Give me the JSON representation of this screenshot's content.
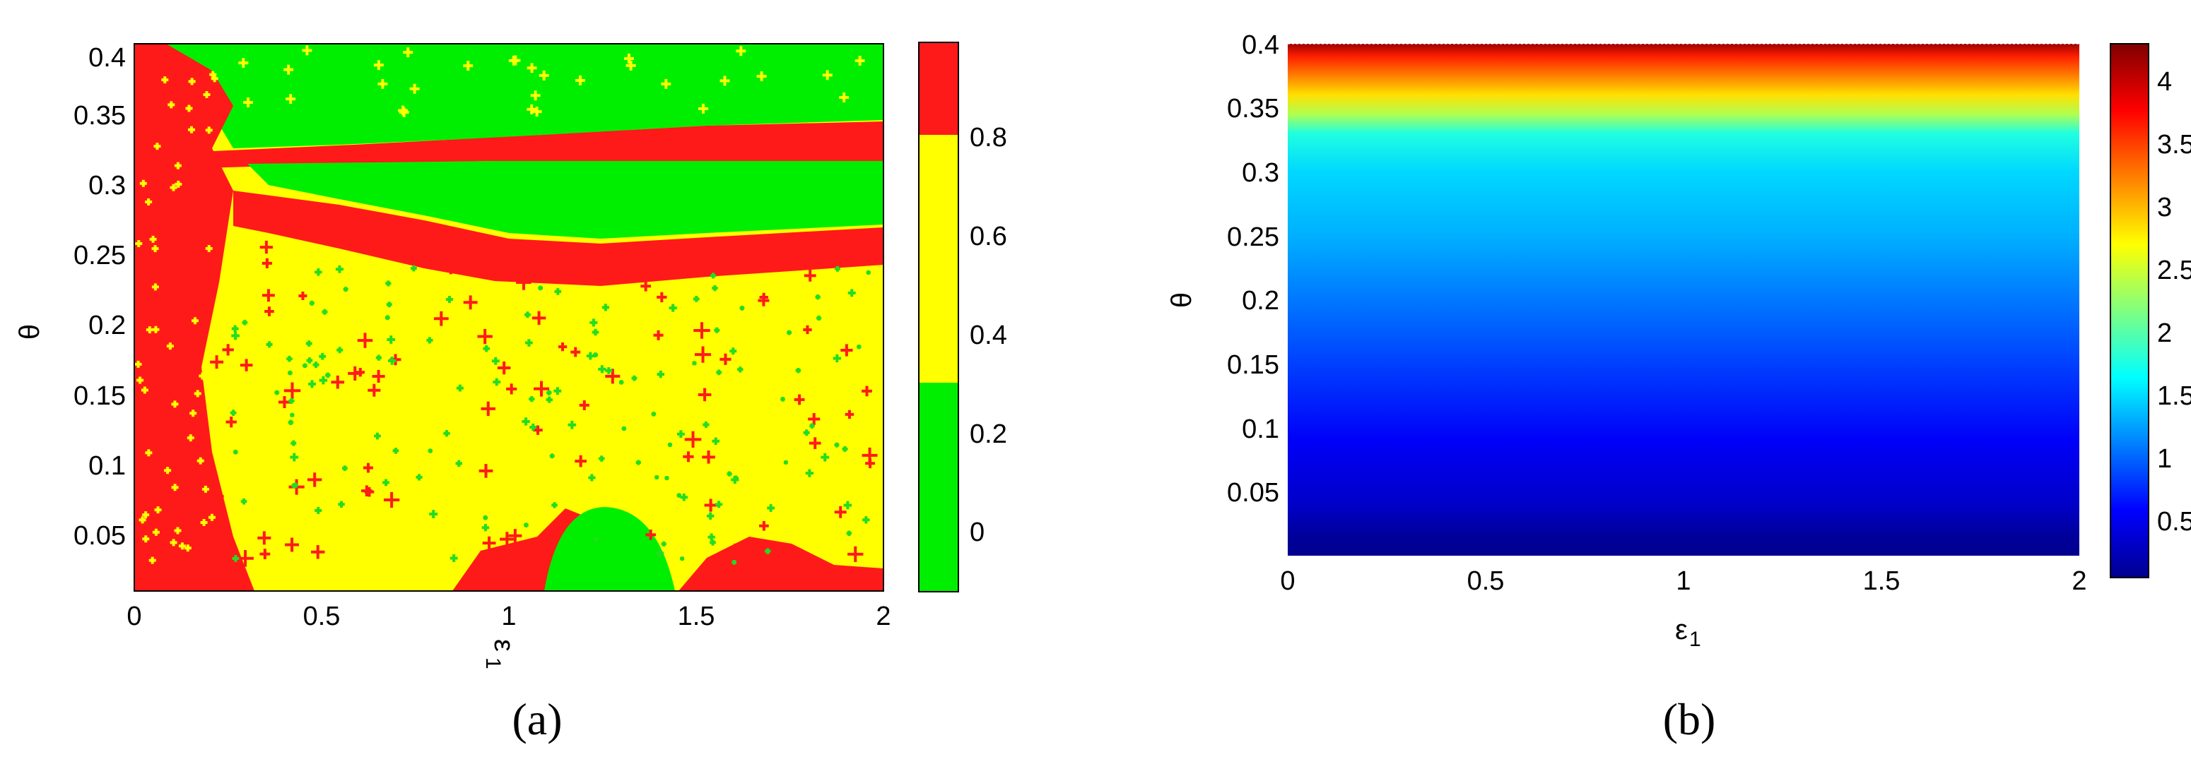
{
  "chart_data": [
    {
      "type": "heatmap",
      "panel_label": "(a)",
      "xlabel": "ε",
      "xlabel_sub": "1",
      "ylabel": "θ",
      "xlim": [
        0,
        2
      ],
      "ylim": [
        0.01,
        0.4
      ],
      "x_ticks": [
        "0",
        "0.5",
        "1",
        "1.5",
        "2"
      ],
      "y_ticks": [
        "0.05",
        "0.1",
        "0.15",
        "0.2",
        "0.25",
        "0.3",
        "0.35",
        "0.4"
      ],
      "colorbar": {
        "range": [
          -0.1,
          1.0
        ],
        "ticks": [
          "0",
          "0.2",
          "0.4",
          "0.6",
          "0.8"
        ],
        "bands": [
          {
            "from": -0.1,
            "to": 0.3,
            "color": "#00ee00"
          },
          {
            "from": 0.3,
            "to": 0.8,
            "color": "#ffff00"
          },
          {
            "from": 0.8,
            "to": 1.0,
            "color": "#ff1a1a"
          }
        ]
      },
      "regions": [
        {
          "value": "yellow",
          "description": "0.3–0.8 band, most of the lower region"
        },
        {
          "value": "green",
          "description": "top band θ>0.35 and θ≈0.28–0.32, dome near ε1≈1.3"
        },
        {
          "value": "red",
          "description": "left strip ε1<0.2, stripes θ≈0.33 and θ≈0.25"
        }
      ]
    },
    {
      "type": "heatmap",
      "panel_label": "(b)",
      "xlabel": "ε",
      "xlabel_sub": "1",
      "ylabel": "θ",
      "xlim": [
        0,
        2
      ],
      "ylim": [
        0.0,
        0.4
      ],
      "x_ticks": [
        "0",
        "0.5",
        "1",
        "1.5",
        "2"
      ],
      "y_ticks": [
        "0.05",
        "0.1",
        "0.15",
        "0.2",
        "0.25",
        "0.3",
        "0.35",
        "0.4"
      ],
      "colormap": "jet",
      "colorbar": {
        "range": [
          0.1,
          4.35
        ],
        "ticks": [
          "0.5",
          "1",
          "1.5",
          "2",
          "2.5",
          "3",
          "3.5",
          "4"
        ]
      },
      "profile": [
        {
          "theta": 0.0,
          "value": 0.15
        },
        {
          "theta": 0.05,
          "value": 0.35
        },
        {
          "theta": 0.1,
          "value": 0.6
        },
        {
          "theta": 0.15,
          "value": 0.9
        },
        {
          "theta": 0.2,
          "value": 1.2
        },
        {
          "theta": 0.25,
          "value": 1.5
        },
        {
          "theta": 0.3,
          "value": 1.8
        },
        {
          "theta": 0.33,
          "value": 2.0
        },
        {
          "theta": 0.345,
          "value": 2.5
        },
        {
          "theta": 0.36,
          "value": 3.0
        },
        {
          "theta": 0.375,
          "value": 3.5
        },
        {
          "theta": 0.39,
          "value": 4.0
        },
        {
          "theta": 0.4,
          "value": 4.3
        }
      ]
    }
  ]
}
